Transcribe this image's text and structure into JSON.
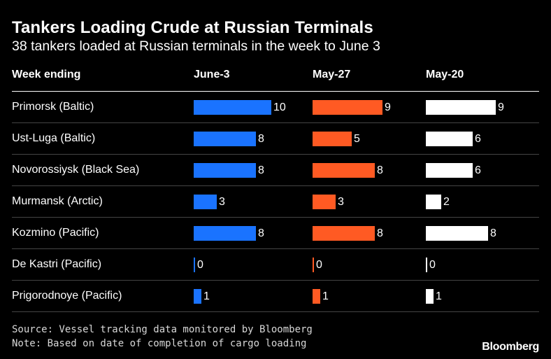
{
  "chart_data": {
    "type": "table",
    "title": "Tankers Loading Crude at Russian Terminals",
    "subtitle": "38 tankers loaded at Russian terminals in the week to June 3",
    "row_header": "Week ending",
    "columns": [
      {
        "name": "June-3",
        "color": "#1a73ff"
      },
      {
        "name": "May-27",
        "color": "#ff5a23"
      },
      {
        "name": "May-20",
        "color": "#ffffff"
      }
    ],
    "rows": [
      {
        "label": "Primorsk (Baltic)",
        "values": [
          10,
          9,
          9
        ]
      },
      {
        "label": "Ust-Luga (Baltic)",
        "values": [
          8,
          5,
          6
        ]
      },
      {
        "label": "Novorossiysk (Black Sea)",
        "values": [
          8,
          8,
          6
        ]
      },
      {
        "label": "Murmansk (Arctic)",
        "values": [
          3,
          3,
          2
        ]
      },
      {
        "label": "Kozmino (Pacific)",
        "values": [
          8,
          8,
          8
        ]
      },
      {
        "label": "De Kastri (Pacific)",
        "values": [
          0,
          0,
          0
        ]
      },
      {
        "label": "Prigorodnoye (Pacific)",
        "values": [
          1,
          1,
          1
        ]
      }
    ],
    "value_max": 10
  },
  "footer": {
    "source": "Source: Vessel tracking data monitored by Bloomberg",
    "note": "Note: Based on date of completion of cargo loading",
    "logo": "Bloomberg"
  }
}
